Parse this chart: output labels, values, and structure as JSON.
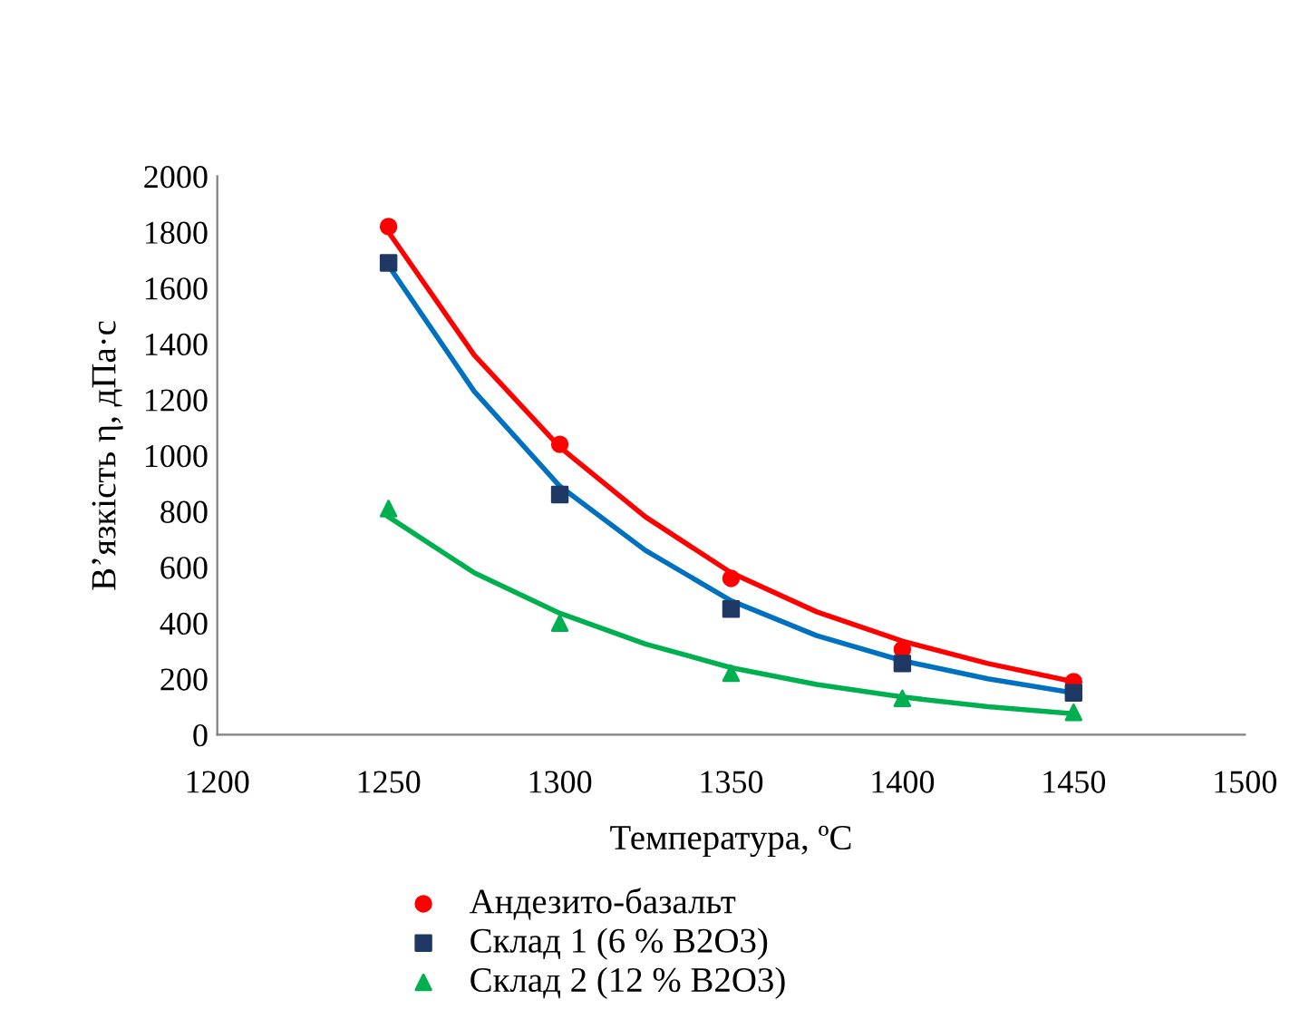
{
  "chart_data": {
    "type": "scatter",
    "xlabel": "Температура, ºС",
    "ylabel": "В’язкість η, дПа·с",
    "xlim": [
      1200,
      1500
    ],
    "xticks": [
      1200,
      1250,
      1300,
      1350,
      1400,
      1450,
      1500
    ],
    "ylim": [
      0,
      2000
    ],
    "yticks": [
      0,
      200,
      400,
      600,
      800,
      1000,
      1200,
      1400,
      1600,
      1800,
      2000
    ],
    "grid": false,
    "legend": "bottom",
    "series": [
      {
        "name": "Андезито-базальт",
        "marker": "circle",
        "color": "#ff0000",
        "x": [
          1250,
          1300,
          1350,
          1400,
          1450
        ],
        "values": [
          1820,
          1040,
          560,
          305,
          190
        ]
      },
      {
        "name": "Склад 1 (6 % B2O3)",
        "marker": "square",
        "color": "#1f3864",
        "x": [
          1250,
          1300,
          1350,
          1400,
          1450
        ],
        "values": [
          1690,
          860,
          450,
          255,
          150
        ]
      },
      {
        "name": "Склад 2 (12 % B2O3)",
        "marker": "triangle",
        "color": "#00b050",
        "x": [
          1250,
          1300,
          1350,
          1400,
          1450
        ],
        "values": [
          810,
          400,
          220,
          130,
          80
        ]
      },
      {
        "type": "line",
        "marker": "none",
        "line_style": "solid",
        "color": "#ff0000",
        "x": [
          1250,
          1275,
          1300,
          1325,
          1350,
          1375,
          1400,
          1425,
          1450
        ],
        "values": [
          1800,
          1360,
          1030,
          780,
          580,
          440,
          335,
          255,
          190
        ]
      },
      {
        "type": "line",
        "marker": "none",
        "line_style": "solid",
        "color": "#0070c0",
        "x": [
          1250,
          1275,
          1300,
          1325,
          1350,
          1375,
          1400,
          1425,
          1450
        ],
        "values": [
          1680,
          1230,
          890,
          660,
          480,
          355,
          265,
          200,
          150
        ]
      },
      {
        "type": "line",
        "marker": "none",
        "line_style": "solid",
        "color": "#00b050",
        "x": [
          1250,
          1275,
          1300,
          1325,
          1350,
          1375,
          1400,
          1425,
          1450
        ],
        "values": [
          780,
          580,
          435,
          325,
          240,
          180,
          135,
          100,
          75
        ]
      }
    ]
  }
}
